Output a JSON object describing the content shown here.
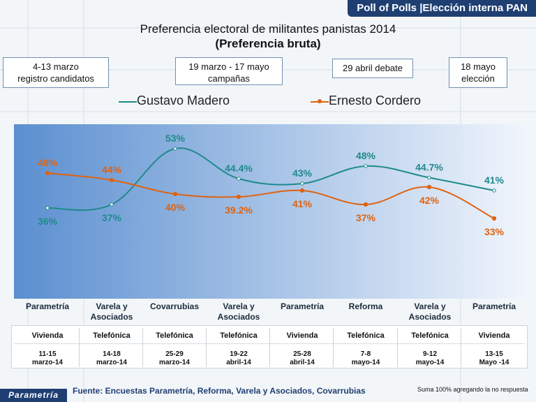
{
  "header": {
    "banner": "Poll of Polls |Elección interna PAN"
  },
  "titles": {
    "line1": "Preferencia electoral de militantes panistas 2014",
    "line2": "(Preferencia bruta)"
  },
  "phases": [
    {
      "line1": "4-13 marzo",
      "line2": "registro candidatos"
    },
    {
      "line1": "19 marzo - 17 mayo",
      "line2": "campañas"
    },
    {
      "line1": "29 abril debate",
      "line2": ""
    },
    {
      "line1": "18 mayo",
      "line2": "elección"
    }
  ],
  "colors": {
    "madero": "#1f8a8a",
    "cordero": "#e0620f",
    "banner": "#1f3f73",
    "plot_bg_left": "#5b8fd0",
    "plot_bg_right": "#f0f5fc"
  },
  "chart_data": {
    "type": "line",
    "title": "Preferencia electoral de militantes panistas 2014",
    "subtitle": "(Preferencia bruta)",
    "categories": [
      "Parametría",
      "Varela y Asociados",
      "Covarrubias",
      "Varela y Asociados",
      "Parametría",
      "Reforma",
      "Varela y Asociados",
      "Parametría"
    ],
    "series": [
      {
        "name": "Gustavo Madero",
        "values": [
          36,
          37,
          53,
          44.4,
          43,
          48,
          44.7,
          41
        ],
        "labels": [
          "36%",
          "37%",
          "53%",
          "44.4%",
          "43%",
          "48%",
          "44.7%",
          "41%"
        ]
      },
      {
        "name": "Ernesto Cordero",
        "values": [
          46,
          44,
          40,
          39.2,
          41,
          37,
          42,
          33
        ],
        "labels": [
          "46%",
          "44%",
          "40%",
          "39.2%",
          "41%",
          "37%",
          "42%",
          "33%"
        ]
      }
    ],
    "ylim": [
      10,
      60
    ],
    "grid": false,
    "legend": "top"
  },
  "pollsters": [
    {
      "line1": "Parametría",
      "line2": ""
    },
    {
      "line1": "Varela y",
      "line2": "Asociados"
    },
    {
      "line1": "Covarrubias",
      "line2": ""
    },
    {
      "line1": "Varela y",
      "line2": "Asociados"
    },
    {
      "line1": "Parametría",
      "line2": ""
    },
    {
      "line1": "Reforma",
      "line2": ""
    },
    {
      "line1": "Varela y",
      "line2": "Asociados"
    },
    {
      "line1": "Parametría",
      "line2": ""
    }
  ],
  "table": {
    "types": [
      "Vivienda",
      "Telefónica",
      "Telefónica",
      "Telefónica",
      "Vivienda",
      "Telefónica",
      "Telefónica",
      "Vivienda"
    ],
    "dates": [
      {
        "line1": "11-15",
        "line2": "marzo-14"
      },
      {
        "line1": "14-18",
        "line2": "marzo-14"
      },
      {
        "line1": "25-29",
        "line2": "marzo-14"
      },
      {
        "line1": "19-22",
        "line2": "abril-14"
      },
      {
        "line1": "25-28",
        "line2": "abril-14"
      },
      {
        "line1": "7-8",
        "line2": "mayo-14"
      },
      {
        "line1": "9-12",
        "line2": "mayo-14"
      },
      {
        "line1": "13-15",
        "line2": "Mayo -14"
      }
    ]
  },
  "footer": {
    "logo": "Parametría",
    "source": "Fuente: Encuestas Parametría, Reforma, Varela y Asociados, Covarrubias",
    "note": "Suma 100% agregando la no respuesta"
  }
}
